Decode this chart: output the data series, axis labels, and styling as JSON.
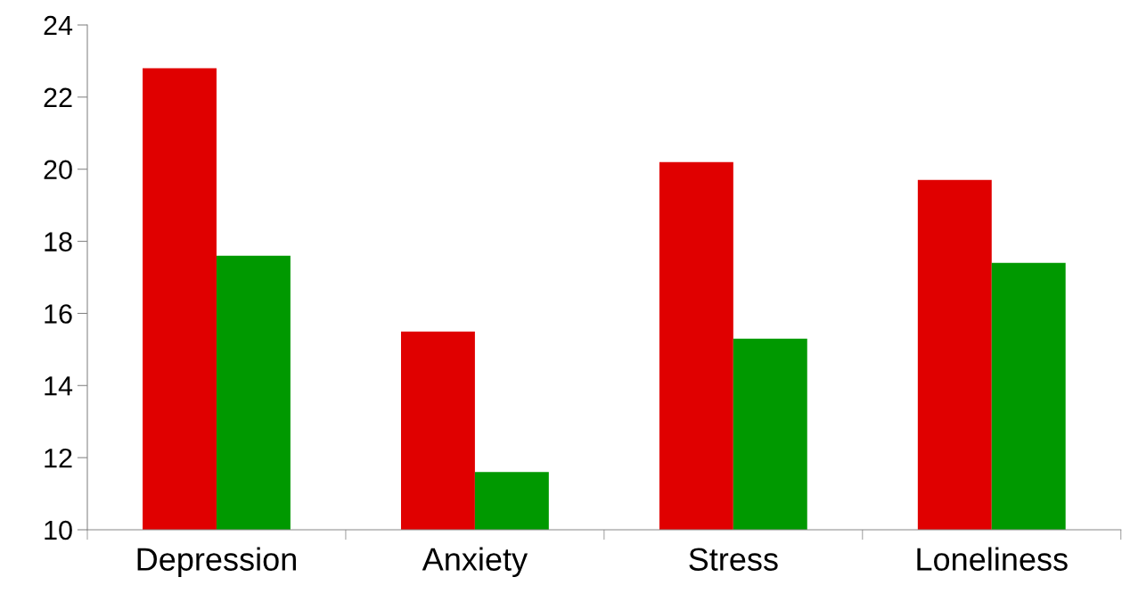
{
  "chart_data": {
    "type": "bar",
    "categories": [
      "Depression",
      "Anxiety",
      "Stress",
      "Loneliness"
    ],
    "series": [
      {
        "color": "#e00000",
        "values": [
          22.8,
          15.5,
          20.2,
          19.7
        ]
      },
      {
        "color": "#009900",
        "values": [
          17.6,
          11.6,
          15.3,
          17.4
        ]
      }
    ],
    "ylim": [
      10,
      24
    ],
    "yticks": [
      10,
      12,
      14,
      16,
      18,
      20,
      22,
      24
    ],
    "grid": false
  }
}
